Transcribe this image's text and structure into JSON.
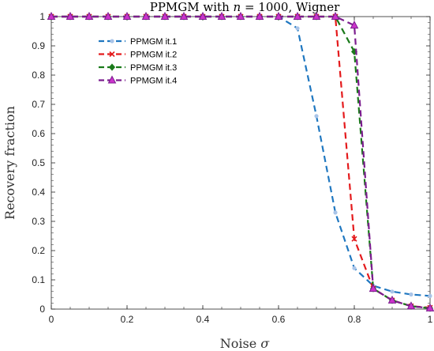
{
  "chart_data": {
    "type": "line",
    "title": "PPMGM with n = 1000, Wigner",
    "title_parts": {
      "prefix": "PPMGM with ",
      "variable": "n",
      "suffix": " = 1000, Wigner"
    },
    "xlabel": "Noise σ",
    "xlabel_parts": {
      "text": "Noise ",
      "symbol": "σ"
    },
    "ylabel": "Recovery fraction",
    "xlim": [
      0,
      1
    ],
    "ylim": [
      0,
      1
    ],
    "xticks": [
      0,
      0.2,
      0.4,
      0.6,
      0.8,
      1
    ],
    "xtick_labels": [
      "0",
      "0.2",
      "0.4",
      "0.6",
      "0.8",
      "1"
    ],
    "yticks": [
      0,
      0.1,
      0.2,
      0.3,
      0.4,
      0.5,
      0.6,
      0.7,
      0.8,
      0.9,
      1
    ],
    "ytick_labels": [
      "0",
      "0.1",
      "0.2",
      "0.3",
      "0.4",
      "0.5",
      "0.6",
      "0.7",
      "0.8",
      "0.9",
      "1"
    ],
    "grid": false,
    "legend_position": "upper-left",
    "x": [
      0,
      0.05,
      0.1,
      0.15,
      0.2,
      0.25,
      0.3,
      0.35,
      0.4,
      0.45,
      0.5,
      0.55,
      0.6,
      0.65,
      0.7,
      0.75,
      0.8,
      0.85,
      0.9,
      0.95,
      1
    ],
    "series": [
      {
        "name": "PPMGM it.1",
        "color": "#1f77c0",
        "marker": "dot",
        "marker_color": "#a9c4e8",
        "values": [
          1,
          1,
          1,
          1,
          1,
          1,
          1,
          1,
          1,
          1,
          1,
          1,
          1,
          0.96,
          0.66,
          0.33,
          0.14,
          0.08,
          0.06,
          0.05,
          0.045
        ]
      },
      {
        "name": "PPMGM it.2",
        "color": "#e41a1c",
        "marker": "x",
        "values": [
          1,
          1,
          1,
          1,
          1,
          1,
          1,
          1,
          1,
          1,
          1,
          1,
          1,
          1,
          1,
          1,
          0.24,
          0.07,
          0.03,
          0.01,
          0.005
        ]
      },
      {
        "name": "PPMGM it.3",
        "color": "#1a7a1a",
        "marker": "diamond",
        "values": [
          1,
          1,
          1,
          1,
          1,
          1,
          1,
          1,
          1,
          1,
          1,
          1,
          1,
          1,
          1,
          1,
          0.88,
          0.07,
          0.03,
          0.01,
          0.003
        ]
      },
      {
        "name": "PPMGM it.4",
        "color": "#7b1d8e",
        "marker": "triangle",
        "values": [
          1,
          1,
          1,
          1,
          1,
          1,
          1,
          1,
          1,
          1,
          1,
          1,
          1,
          1,
          1,
          1,
          0.97,
          0.07,
          0.03,
          0.01,
          0.003
        ]
      }
    ]
  }
}
